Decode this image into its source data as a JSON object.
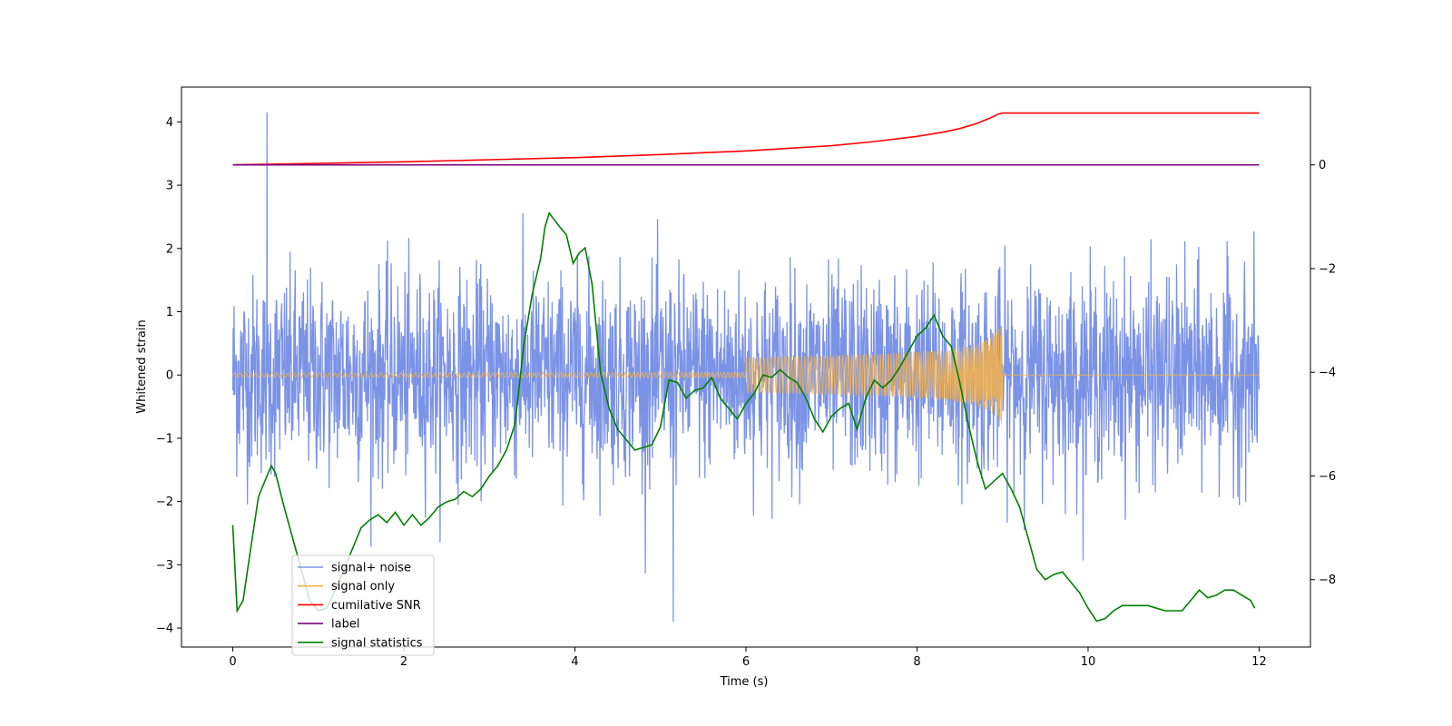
{
  "chart_data": {
    "type": "line",
    "title": "",
    "xlabel": "Time (s)",
    "ylabel": "Whitened strain",
    "xlim": [
      -0.6,
      12.6
    ],
    "ylim": [
      -4.3,
      4.55
    ],
    "y2lim": [
      -9.3,
      1.5
    ],
    "x_ticks": [
      "0",
      "2",
      "4",
      "6",
      "8",
      "10",
      "12"
    ],
    "y_ticks": [
      "4",
      "3",
      "2",
      "1",
      "0",
      "−1",
      "−2",
      "−3",
      "−4"
    ],
    "y2_ticks": [
      "0",
      "−2",
      "−4",
      "−6",
      "−8"
    ],
    "grid": false,
    "legend_position": "lower left",
    "legend": [
      {
        "label": "signal+ noise",
        "color": "#7b93e6"
      },
      {
        "label": "signal only",
        "color": "#f5b14a"
      },
      {
        "label": "cumilative SNR",
        "color": "#ff0000"
      },
      {
        "label": "label",
        "color": "#800080"
      },
      {
        "label": "signal statistics",
        "color": "#008000"
      }
    ],
    "series": [
      {
        "name": "signal+ noise",
        "axis": "left",
        "color": "#7b93e6",
        "description_values": {
          "x_range": [
            0,
            12
          ],
          "typical_amplitude": [
            -2.5,
            2.5
          ],
          "max": 4.15,
          "max_x": 0.4,
          "min": -3.9,
          "min_x": 5.15
        }
      },
      {
        "name": "signal only",
        "axis": "left",
        "color": "#f5b14a",
        "chirp_end_x": 9.0,
        "chirp_peak_amplitude": 1.0
      },
      {
        "name": "cumilative SNR",
        "axis": "right",
        "color": "#ff0000",
        "x": [
          0,
          1,
          2,
          3,
          4,
          5,
          6,
          7,
          7.5,
          8,
          8.3,
          8.5,
          8.7,
          8.85,
          8.95,
          9.0,
          12
        ],
        "y": [
          0.0,
          0.03,
          0.06,
          0.1,
          0.14,
          0.2,
          0.27,
          0.37,
          0.45,
          0.55,
          0.63,
          0.7,
          0.8,
          0.9,
          0.98,
          1.0,
          1.0
        ]
      },
      {
        "name": "label",
        "axis": "right",
        "color": "#800080",
        "x": [
          0,
          12
        ],
        "y": [
          0,
          0
        ]
      },
      {
        "name": "signal statistics",
        "axis": "right",
        "color": "#008000",
        "x": [
          0,
          0.05,
          0.12,
          0.2,
          0.3,
          0.4,
          0.45,
          0.5,
          0.6,
          0.7,
          0.8,
          0.9,
          1.0,
          1.1,
          1.2,
          1.3,
          1.4,
          1.5,
          1.6,
          1.7,
          1.8,
          1.9,
          2.0,
          2.1,
          2.2,
          2.3,
          2.4,
          2.5,
          2.6,
          2.7,
          2.8,
          2.9,
          3.0,
          3.1,
          3.2,
          3.3,
          3.4,
          3.5,
          3.6,
          3.65,
          3.7,
          3.8,
          3.9,
          3.98,
          4.05,
          4.12,
          4.2,
          4.3,
          4.4,
          4.5,
          4.6,
          4.7,
          4.8,
          4.9,
          5.0,
          5.1,
          5.2,
          5.3,
          5.4,
          5.5,
          5.6,
          5.7,
          5.8,
          5.9,
          6.0,
          6.1,
          6.2,
          6.3,
          6.4,
          6.5,
          6.6,
          6.7,
          6.8,
          6.9,
          7.0,
          7.1,
          7.2,
          7.3,
          7.4,
          7.5,
          7.6,
          7.7,
          7.8,
          7.9,
          8.0,
          8.1,
          8.2,
          8.3,
          8.4,
          8.5,
          8.6,
          8.7,
          8.8,
          8.9,
          9.0,
          9.1,
          9.2,
          9.3,
          9.4,
          9.5,
          9.6,
          9.7,
          9.8,
          9.9,
          10.0,
          10.1,
          10.2,
          10.3,
          10.4,
          10.5,
          10.6,
          10.7,
          10.8,
          10.9,
          11.0,
          11.1,
          11.2,
          11.3,
          11.4,
          11.5,
          11.6,
          11.7,
          11.8,
          11.9,
          11.95
        ],
        "y": [
          -6.95,
          -8.6,
          -8.4,
          -7.5,
          -6.4,
          -6.0,
          -5.8,
          -5.95,
          -6.6,
          -7.2,
          -7.8,
          -8.4,
          -8.6,
          -8.55,
          -8.2,
          -7.8,
          -7.4,
          -7.0,
          -6.85,
          -6.75,
          -6.9,
          -6.7,
          -6.95,
          -6.75,
          -6.95,
          -6.8,
          -6.6,
          -6.5,
          -6.45,
          -6.3,
          -6.4,
          -6.25,
          -6.0,
          -5.8,
          -5.5,
          -5.0,
          -3.5,
          -2.5,
          -1.8,
          -1.2,
          -0.93,
          -1.15,
          -1.35,
          -1.9,
          -1.7,
          -1.6,
          -2.3,
          -4.0,
          -4.7,
          -5.1,
          -5.3,
          -5.5,
          -5.45,
          -5.4,
          -5.05,
          -4.15,
          -4.2,
          -4.5,
          -4.35,
          -4.3,
          -4.1,
          -4.5,
          -4.7,
          -4.9,
          -4.6,
          -4.4,
          -4.05,
          -4.1,
          -3.95,
          -4.1,
          -4.2,
          -4.5,
          -4.9,
          -5.15,
          -4.85,
          -4.7,
          -4.6,
          -5.1,
          -4.5,
          -4.15,
          -4.3,
          -4.15,
          -3.9,
          -3.6,
          -3.3,
          -3.15,
          -2.9,
          -3.3,
          -3.5,
          -4.2,
          -5.0,
          -5.7,
          -6.25,
          -6.1,
          -5.95,
          -6.25,
          -6.6,
          -7.2,
          -7.8,
          -8.0,
          -7.9,
          -7.85,
          -8.05,
          -8.25,
          -8.55,
          -8.8,
          -8.75,
          -8.6,
          -8.5,
          -8.5,
          -8.5,
          -8.5,
          -8.55,
          -8.6,
          -8.6,
          -8.6,
          -8.4,
          -8.2,
          -8.35,
          -8.3,
          -8.2,
          -8.2,
          -8.3,
          -8.4,
          -8.55
        ]
      }
    ]
  }
}
